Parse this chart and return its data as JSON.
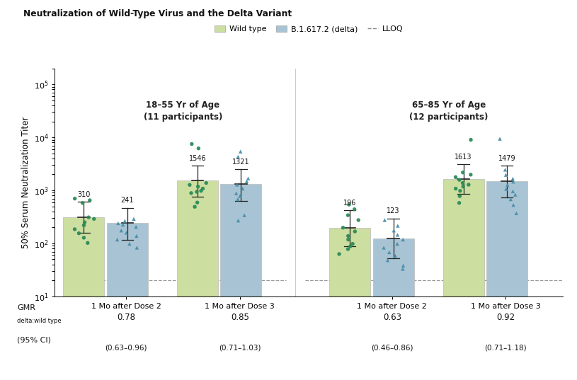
{
  "title": "Neutralization of Wild-Type Virus and the Delta Variant",
  "ylabel": "50% Serum Neutralization Titer",
  "lloq": 20,
  "wild_type_color": "#ccdea0",
  "delta_color": "#a8c4d4",
  "dot_wild_color": "#2d8b57",
  "dot_delta_color": "#4a8fa8",
  "gmr_vals": [
    310,
    241,
    1546,
    1321,
    196,
    123,
    1613,
    1479
  ],
  "ci_lows": [
    160,
    118,
    760,
    640,
    88,
    52,
    860,
    740
  ],
  "ci_highs": [
    610,
    470,
    2900,
    2500,
    420,
    295,
    3100,
    2900
  ],
  "gmr_labels": [
    "310",
    "241",
    "1546",
    "1321",
    "196",
    "123",
    "1613",
    "1479"
  ],
  "dots_data": [
    [
      700,
      650,
      580,
      310,
      290,
      250,
      220,
      185,
      155,
      128,
      102
    ],
    [
      290,
      265,
      240,
      225,
      205,
      175,
      158,
      138,
      118,
      98,
      83
    ],
    [
      7500,
      6200,
      1380,
      1270,
      1180,
      1080,
      980,
      940,
      890,
      590,
      490
    ],
    [
      5400,
      4300,
      1680,
      1480,
      1280,
      1080,
      880,
      780,
      680,
      340,
      270
    ],
    [
      540,
      440,
      340,
      275,
      198,
      168,
      138,
      118,
      98,
      88,
      78,
      63
    ],
    [
      275,
      215,
      175,
      145,
      118,
      98,
      83,
      68,
      58,
      48,
      38,
      33
    ],
    [
      9000,
      2180,
      1980,
      1780,
      1580,
      1380,
      1280,
      1180,
      1080,
      980,
      780,
      580
    ],
    [
      9400,
      2450,
      1960,
      1660,
      1460,
      1260,
      1060,
      960,
      830,
      680,
      530,
      370
    ]
  ],
  "gmr_main": [
    "0.78",
    "0.85",
    "0.63",
    "0.92"
  ],
  "gmr_ci": [
    "(0.63–0.96)",
    "(0.71–1.03)",
    "(0.46–0.86)",
    "(0.71–1.18)"
  ]
}
